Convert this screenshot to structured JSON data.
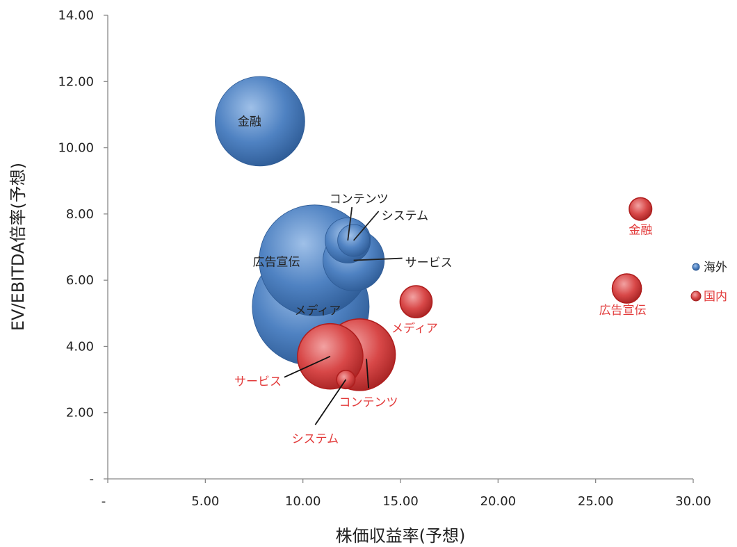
{
  "chart_data": {
    "type": "bubble",
    "xlabel": "株価収益率(予想)",
    "ylabel": "EV/EBITDA倍率(予想)",
    "xlim": [
      0,
      30
    ],
    "ylim": [
      0,
      14
    ],
    "x_ticks": [
      {
        "value": 0,
        "label": "-"
      },
      {
        "value": 5,
        "label": "5.00"
      },
      {
        "value": 10,
        "label": "10.00"
      },
      {
        "value": 15,
        "label": "15.00"
      },
      {
        "value": 20,
        "label": "20.00"
      },
      {
        "value": 25,
        "label": "25.00"
      },
      {
        "value": 30,
        "label": "30.00"
      }
    ],
    "y_ticks": [
      {
        "value": 0,
        "label": "-"
      },
      {
        "value": 2,
        "label": "2.00"
      },
      {
        "value": 4,
        "label": "4.00"
      },
      {
        "value": 6,
        "label": "6.00"
      },
      {
        "value": 8,
        "label": "8.00"
      },
      {
        "value": 10,
        "label": "10.00"
      },
      {
        "value": 12,
        "label": "12.00"
      },
      {
        "value": 14,
        "label": "14.00"
      }
    ],
    "grid": false,
    "legend": "right",
    "series": [
      {
        "name": "海外",
        "color": "#4a7fc1",
        "points": [
          {
            "label": "金融",
            "x": 7.8,
            "y": 10.8,
            "size": 0.47
          },
          {
            "label": "広告宣伝",
            "x": 10.6,
            "y": 6.6,
            "size": 0.72
          },
          {
            "label": "メディア",
            "x": 10.4,
            "y": 5.2,
            "size": 0.8
          },
          {
            "label": "サービス",
            "x": 12.6,
            "y": 6.6,
            "size": 0.22
          },
          {
            "label": "コンテンツ",
            "x": 12.3,
            "y": 7.2,
            "size": 0.12
          },
          {
            "label": "システム",
            "x": 12.6,
            "y": 7.2,
            "size": 0.06
          }
        ]
      },
      {
        "name": "国内",
        "color": "#d33535",
        "points": [
          {
            "label": "金融",
            "x": 27.3,
            "y": 8.15,
            "size": 0.03
          },
          {
            "label": "広告宣伝",
            "x": 26.6,
            "y": 5.75,
            "size": 0.05
          },
          {
            "label": "メディア",
            "x": 15.8,
            "y": 5.35,
            "size": 0.06
          },
          {
            "label": "サービス",
            "x": 11.4,
            "y": 3.7,
            "size": 0.25
          },
          {
            "label": "コンテンツ",
            "x": 12.9,
            "y": 3.75,
            "size": 0.3
          },
          {
            "label": "システム",
            "x": 12.2,
            "y": 3.0,
            "size": 0.02
          }
        ]
      }
    ]
  }
}
